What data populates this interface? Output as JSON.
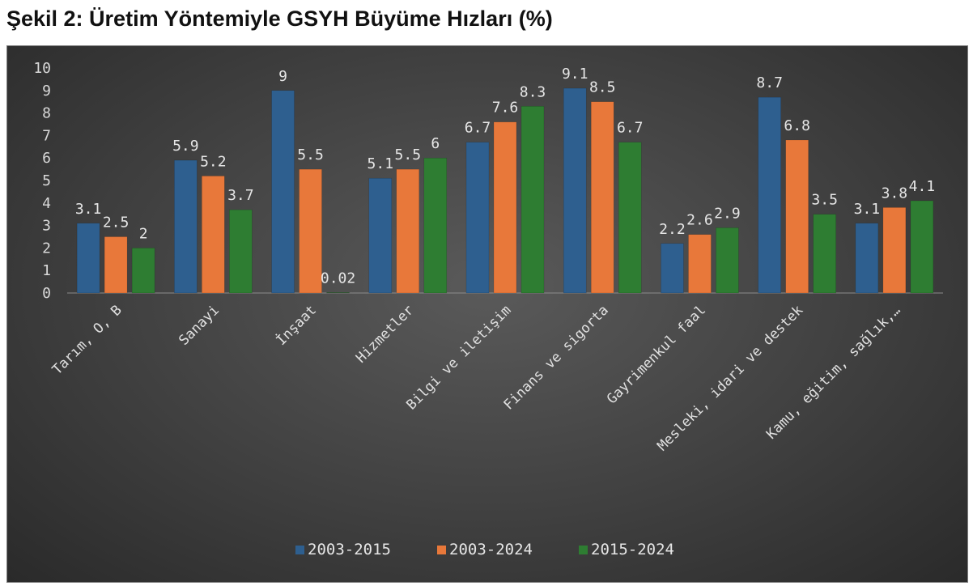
{
  "figure_title": "Şekil 2: Üretim Yöntemiyle GSYH Büyüme Hızları (%)",
  "colors": {
    "2003-2015": "#2e5f8f",
    "2003-2024": "#e8783a",
    "2015-2024": "#2e7d32"
  },
  "chart_data": {
    "type": "bar",
    "title": "",
    "xlabel": "",
    "ylabel": "",
    "ylim": [
      0,
      10
    ],
    "yticks": [
      0,
      1,
      2,
      3,
      4,
      5,
      6,
      7,
      8,
      9,
      10
    ],
    "grid": false,
    "legend_position": "bottom",
    "categories": [
      "Tarım, O, B",
      "Sanayi",
      "İnşaat",
      "Hizmetler",
      "Bilgi ve iletişim",
      "Finans ve sigorta",
      "Gayrimenkul faal",
      "Mesleki, idari ve destek",
      "Kamu, eğitim, sağlık,…"
    ],
    "series": [
      {
        "name": "2003-2015",
        "values": [
          3.1,
          5.9,
          9,
          5.1,
          6.7,
          9.1,
          2.2,
          8.7,
          3.1
        ],
        "labels": [
          "3.1",
          "5.9",
          "9",
          "5.1",
          "6.7",
          "9.1",
          "2.2",
          "8.7",
          "3.1"
        ]
      },
      {
        "name": "2003-2024",
        "values": [
          2.5,
          5.2,
          5.5,
          5.5,
          7.6,
          8.5,
          2.6,
          6.8,
          3.8
        ],
        "labels": [
          "2.5",
          "5.2",
          "5.5",
          "5.5",
          "7.6",
          "8.5",
          "2.6",
          "6.8",
          "3.8"
        ]
      },
      {
        "name": "2015-2024",
        "values": [
          2,
          3.7,
          0.02,
          6,
          8.3,
          6.7,
          2.9,
          3.5,
          4.1
        ],
        "labels": [
          "2",
          "3.7",
          "0.02",
          "6",
          "8.3",
          "6.7",
          "2.9",
          "3.5",
          "4.1"
        ]
      }
    ]
  }
}
